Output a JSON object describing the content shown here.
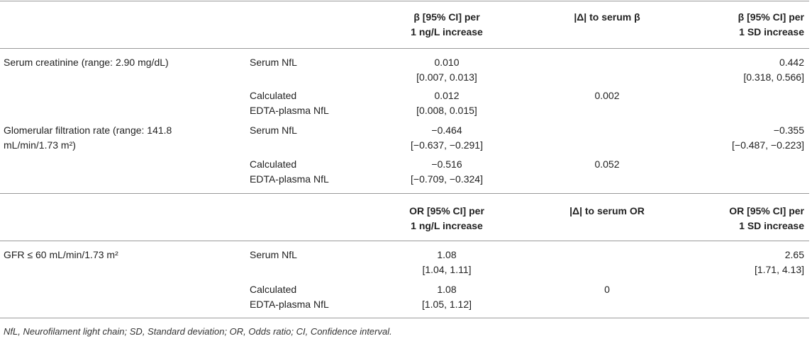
{
  "section1": {
    "header": {
      "col3": [
        "β [95% CI] per",
        "1 ng/L increase"
      ],
      "col4": "|Δ| to serum β",
      "col5": [
        "β [95% CI] per",
        "1 SD increase"
      ]
    },
    "rows": [
      {
        "label": [
          "Serum creatinine (range: 2.90 mg/dL)"
        ],
        "sub": [
          "Serum NfL"
        ],
        "est": [
          "0.010",
          "[0.007, 0.013]"
        ],
        "delta": "",
        "sd": [
          "0.442",
          "[0.318, 0.566]"
        ]
      },
      {
        "label": [],
        "sub": [
          "Calculated",
          "EDTA-plasma NfL"
        ],
        "est": [
          "0.012",
          "[0.008, 0.015]"
        ],
        "delta": "0.002",
        "sd": []
      },
      {
        "label": [
          "Glomerular filtration rate (range: 141.8",
          "mL/min/1.73 m²)"
        ],
        "sub": [
          "Serum NfL"
        ],
        "est": [
          "−0.464",
          "[−0.637, −0.291]"
        ],
        "delta": "",
        "sd": [
          "−0.355",
          "[−0.487, −0.223]"
        ]
      },
      {
        "label": [],
        "sub": [
          "Calculated",
          "EDTA-plasma NfL"
        ],
        "est": [
          "−0.516",
          "[−0.709, −0.324]"
        ],
        "delta": "0.052",
        "sd": []
      }
    ]
  },
  "section2": {
    "header": {
      "col3": [
        "OR [95% CI] per",
        "1 ng/L increase"
      ],
      "col4": "|Δ| to serum OR",
      "col5": [
        "OR [95% CI] per",
        "1 SD increase"
      ]
    },
    "rows": [
      {
        "label": [
          "GFR ≤ 60 mL/min/1.73 m²"
        ],
        "sub": [
          "Serum NfL"
        ],
        "est": [
          "1.08",
          "[1.04, 1.11]"
        ],
        "delta": "",
        "sd": [
          "2.65",
          "[1.71, 4.13]"
        ]
      },
      {
        "label": [],
        "sub": [
          "Calculated",
          "EDTA-plasma NfL"
        ],
        "est": [
          "1.08",
          "[1.05, 1.12]"
        ],
        "delta": "0",
        "sd": []
      }
    ]
  },
  "footnote": "NfL, Neurofilament light chain; SD, Standard deviation; OR, Odds ratio; CI, Confidence interval."
}
